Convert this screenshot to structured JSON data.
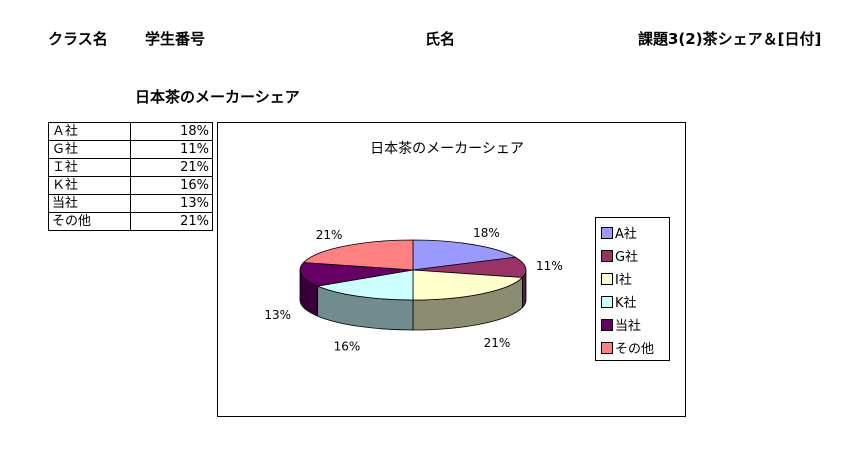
{
  "header": {
    "class_label": "クラス名",
    "student_number_label": "学生番号",
    "name_label": "氏名",
    "assignment_label": "課題3(2)茶シェア＆[日付]"
  },
  "sheet_title": "日本茶のメーカーシェア",
  "table": {
    "rows": [
      {
        "name": "Ａ社",
        "value": "18%"
      },
      {
        "name": "Ｇ社",
        "value": "11%"
      },
      {
        "name": "Ｉ社",
        "value": "21%"
      },
      {
        "name": "Ｋ社",
        "value": "16%"
      },
      {
        "name": "当社",
        "value": "13%"
      },
      {
        "name": "その他",
        "value": "21%"
      }
    ]
  },
  "chart_data": {
    "type": "pie",
    "title": "日本茶のメーカーシェア",
    "three_d": true,
    "legend_position": "right",
    "series": [
      {
        "name": "",
        "categories": [
          "A社",
          "G社",
          "I社",
          "K社",
          "当社",
          "その他"
        ],
        "values": [
          18,
          11,
          21,
          16,
          13,
          21
        ],
        "labels": [
          "18%",
          "11%",
          "21%",
          "16%",
          "13%",
          "21%"
        ]
      }
    ],
    "colors": [
      "#9999ff",
      "#993366",
      "#ffffcc",
      "#ccffff",
      "#660066",
      "#ff8080"
    ]
  }
}
